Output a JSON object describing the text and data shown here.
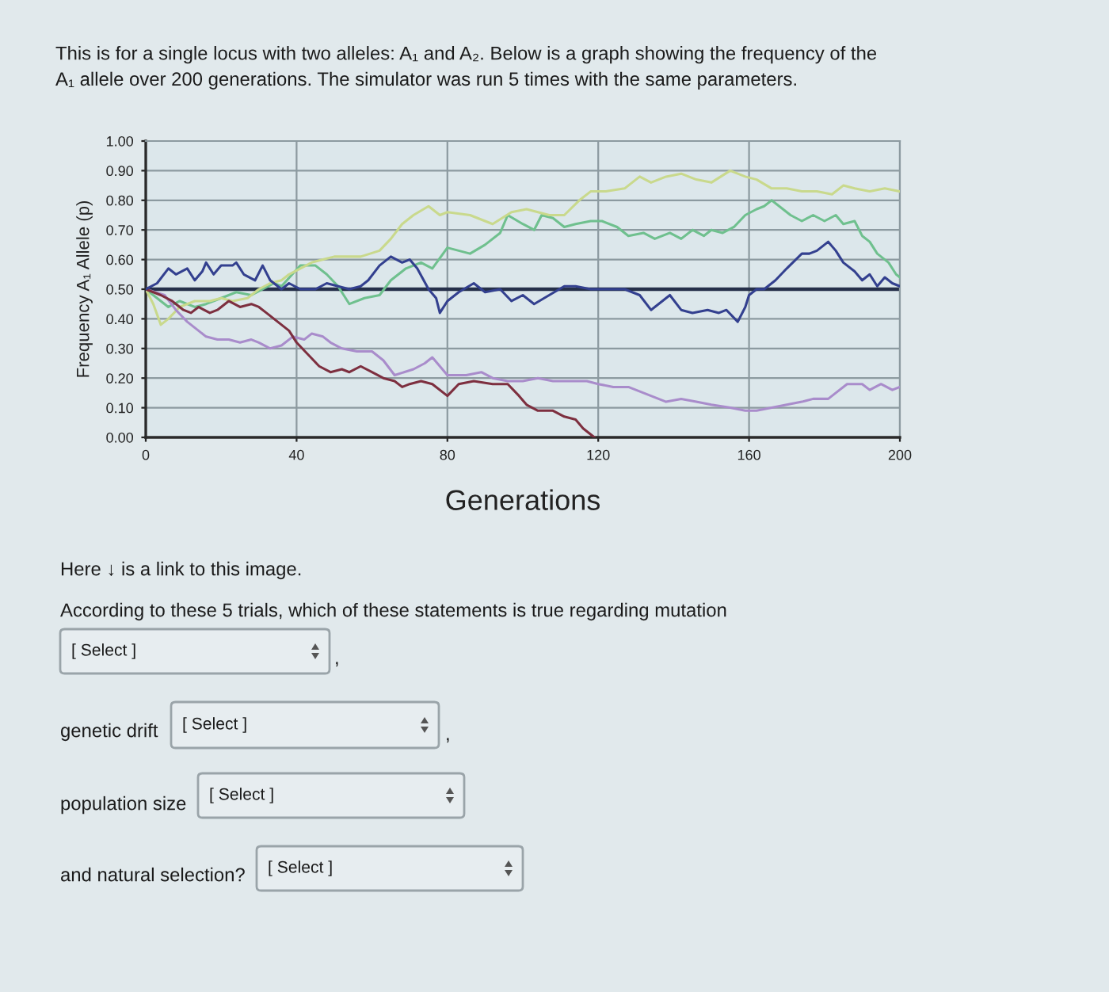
{
  "chart_data": {
    "type": "line",
    "title": "This is for a single locus with two alleles: A₁ and A₂. Below is a graph showing the frequency of the\nA₁ allele over 200 generations. The simulator was run 5 times with the same parameters.",
    "xlabel": "Generations",
    "ylabel": "Frequency A₁ Allele (p)",
    "xlim": [
      0,
      200
    ],
    "xticks": [
      0,
      40,
      80,
      120,
      160,
      200
    ],
    "ylim": [
      0,
      1
    ],
    "yticks": [
      {
        "value": 0,
        "label": "0.00"
      },
      {
        "value": 0.1,
        "label": "0.10"
      },
      {
        "value": 0.2,
        "label": "0.20"
      },
      {
        "value": 0.3,
        "label": "0.30"
      },
      {
        "value": 0.4,
        "label": "0.40"
      },
      {
        "value": 0.5,
        "label": "0.50"
      },
      {
        "value": 0.6,
        "label": "0.60"
      },
      {
        "value": 0.7,
        "label": "0.70"
      },
      {
        "value": 0.8,
        "label": "0.80"
      },
      {
        "value": 0.9,
        "label": "0.90"
      },
      {
        "value": 1,
        "label": "1.00"
      }
    ],
    "grid": true,
    "line_style": "solid",
    "ref_lines": [
      {
        "axis": "y",
        "value": 0.5,
        "color": "#26304a"
      }
    ],
    "series": [
      {
        "color": "#6fc08e",
        "x": [
          0,
          3,
          6,
          9,
          13,
          16,
          20,
          24,
          28,
          31,
          34,
          36,
          41,
          45,
          48,
          51,
          54,
          58,
          62,
          65,
          67,
          69,
          73,
          76,
          80,
          83,
          86,
          90,
          94,
          96,
          100,
          103,
          105,
          108,
          111,
          114,
          118,
          121,
          125,
          128,
          132,
          135,
          139,
          142,
          145,
          148,
          150,
          153,
          156,
          159,
          162,
          164,
          166,
          169,
          171,
          174,
          177,
          180,
          183,
          185,
          188,
          190,
          192,
          194,
          197,
          199,
          200
        ],
        "values": [
          0.5,
          0.47,
          0.44,
          0.46,
          0.44,
          0.45,
          0.47,
          0.49,
          0.48,
          0.5,
          0.52,
          0.51,
          0.58,
          0.58,
          0.55,
          0.51,
          0.45,
          0.47,
          0.48,
          0.53,
          0.55,
          0.57,
          0.59,
          0.57,
          0.64,
          0.63,
          0.62,
          0.65,
          0.69,
          0.75,
          0.72,
          0.7,
          0.75,
          0.74,
          0.71,
          0.72,
          0.73,
          0.73,
          0.71,
          0.68,
          0.69,
          0.67,
          0.69,
          0.67,
          0.7,
          0.68,
          0.7,
          0.69,
          0.71,
          0.75,
          0.77,
          0.78,
          0.8,
          0.77,
          0.75,
          0.73,
          0.75,
          0.73,
          0.75,
          0.72,
          0.73,
          0.68,
          0.66,
          0.62,
          0.59,
          0.55,
          0.54
        ]
      },
      {
        "color": "#c9d98c",
        "x": [
          0,
          2,
          4,
          6,
          9,
          13,
          17,
          20,
          23,
          27,
          30,
          33,
          36,
          38,
          41,
          44,
          47,
          50,
          54,
          57,
          62,
          65,
          68,
          71,
          75,
          78,
          80,
          86,
          92,
          97,
          101,
          107,
          111,
          115,
          118,
          122,
          127,
          131,
          134,
          138,
          142,
          146,
          150,
          155,
          159,
          162,
          166,
          170,
          174,
          178,
          182,
          185,
          188,
          192,
          196,
          200
        ],
        "values": [
          0.5,
          0.45,
          0.38,
          0.4,
          0.44,
          0.46,
          0.46,
          0.47,
          0.46,
          0.47,
          0.5,
          0.52,
          0.53,
          0.55,
          0.57,
          0.59,
          0.6,
          0.61,
          0.61,
          0.61,
          0.63,
          0.67,
          0.72,
          0.75,
          0.78,
          0.75,
          0.76,
          0.75,
          0.72,
          0.76,
          0.77,
          0.75,
          0.75,
          0.8,
          0.83,
          0.83,
          0.84,
          0.88,
          0.86,
          0.88,
          0.89,
          0.87,
          0.86,
          0.9,
          0.88,
          0.87,
          0.84,
          0.84,
          0.83,
          0.83,
          0.82,
          0.85,
          0.84,
          0.83,
          0.84,
          0.83
        ]
      },
      {
        "color": "#a98ccb",
        "x": [
          0,
          5,
          8,
          11,
          14,
          16,
          19,
          22,
          25,
          28,
          30,
          33,
          36,
          39,
          42,
          44,
          47,
          49,
          52,
          56,
          60,
          63,
          66,
          71,
          74,
          76,
          78,
          80,
          85,
          89,
          92,
          96,
          100,
          104,
          108,
          113,
          117,
          120,
          124,
          128,
          132,
          136,
          138,
          142,
          146,
          150,
          155,
          159,
          162,
          166,
          170,
          174,
          177,
          181,
          183,
          186,
          190,
          192,
          195,
          198,
          200
        ],
        "values": [
          0.5,
          0.48,
          0.43,
          0.39,
          0.36,
          0.34,
          0.33,
          0.33,
          0.32,
          0.33,
          0.32,
          0.3,
          0.31,
          0.34,
          0.33,
          0.35,
          0.34,
          0.32,
          0.3,
          0.29,
          0.29,
          0.26,
          0.21,
          0.23,
          0.25,
          0.27,
          0.24,
          0.21,
          0.21,
          0.22,
          0.2,
          0.19,
          0.19,
          0.2,
          0.19,
          0.19,
          0.19,
          0.18,
          0.17,
          0.17,
          0.15,
          0.13,
          0.12,
          0.13,
          0.12,
          0.11,
          0.1,
          0.09,
          0.09,
          0.1,
          0.11,
          0.12,
          0.13,
          0.13,
          0.15,
          0.18,
          0.18,
          0.16,
          0.18,
          0.16,
          0.17
        ]
      },
      {
        "color": "#7d2f3f",
        "x": [
          0,
          4,
          7,
          10,
          12,
          14,
          17,
          19,
          22,
          25,
          28,
          30,
          32,
          35,
          38,
          40,
          43,
          46,
          49,
          52,
          54,
          57,
          60,
          63,
          66,
          68,
          70,
          73,
          76,
          80,
          83,
          87,
          92,
          96,
          99,
          101,
          104,
          108,
          111,
          114,
          116,
          118,
          119
        ],
        "values": [
          0.5,
          0.48,
          0.46,
          0.43,
          0.42,
          0.44,
          0.42,
          0.43,
          0.46,
          0.44,
          0.45,
          0.44,
          0.42,
          0.39,
          0.36,
          0.32,
          0.28,
          0.24,
          0.22,
          0.23,
          0.22,
          0.24,
          0.22,
          0.2,
          0.19,
          0.17,
          0.18,
          0.19,
          0.18,
          0.14,
          0.18,
          0.19,
          0.18,
          0.18,
          0.14,
          0.11,
          0.09,
          0.09,
          0.07,
          0.06,
          0.03,
          0.01,
          0.0
        ]
      },
      {
        "color": "#33408f",
        "x": [
          0,
          3,
          6,
          8,
          11,
          13,
          15,
          16,
          18,
          20,
          23,
          24,
          26,
          29,
          31,
          33,
          36,
          38,
          41,
          45,
          48,
          51,
          54,
          57,
          59,
          62,
          65,
          68,
          70,
          72,
          75,
          77,
          78,
          80,
          83,
          87,
          90,
          94,
          97,
          100,
          103,
          107,
          111,
          114,
          118,
          122,
          127,
          131,
          134,
          136,
          139,
          142,
          145,
          149,
          152,
          154,
          157,
          159,
          160,
          162,
          164,
          167,
          170,
          174,
          176,
          178,
          181,
          183,
          185,
          188,
          190,
          192,
          194,
          196,
          198,
          200
        ],
        "values": [
          0.5,
          0.52,
          0.57,
          0.55,
          0.57,
          0.53,
          0.56,
          0.59,
          0.55,
          0.58,
          0.58,
          0.59,
          0.55,
          0.53,
          0.58,
          0.53,
          0.5,
          0.52,
          0.5,
          0.5,
          0.52,
          0.51,
          0.5,
          0.51,
          0.53,
          0.58,
          0.61,
          0.59,
          0.6,
          0.57,
          0.5,
          0.47,
          0.42,
          0.46,
          0.49,
          0.52,
          0.49,
          0.5,
          0.46,
          0.48,
          0.45,
          0.48,
          0.51,
          0.51,
          0.5,
          0.5,
          0.5,
          0.48,
          0.43,
          0.45,
          0.48,
          0.43,
          0.42,
          0.43,
          0.42,
          0.43,
          0.39,
          0.44,
          0.48,
          0.5,
          0.5,
          0.53,
          0.57,
          0.62,
          0.62,
          0.63,
          0.66,
          0.63,
          0.59,
          0.56,
          0.53,
          0.55,
          0.51,
          0.54,
          0.52,
          0.51
        ]
      }
    ],
    "annotations": [
      "Here ↓ is a link to this image.",
      "According to these 5 trials, which of these statements is true regarding mutation",
      "[ Select ]",
      ",",
      "genetic drift",
      "[ Select ]",
      ",",
      "population size",
      "[ Select ]",
      "and natural selection?",
      "[ Select ]"
    ]
  }
}
